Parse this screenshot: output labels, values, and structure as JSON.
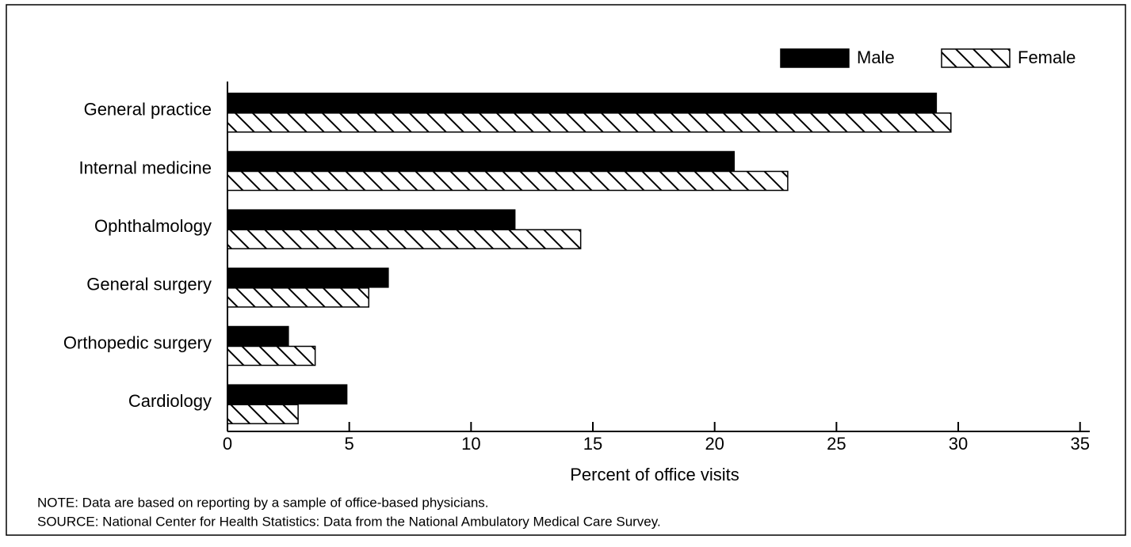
{
  "chart_data": {
    "type": "hbar",
    "categories": [
      "General practice",
      "Internal medicine",
      "Ophthalmology",
      "General surgery",
      "Orthopedic surgery",
      "Cardiology"
    ],
    "series": [
      {
        "name": "Male",
        "color": "#000000",
        "values": [
          29.1,
          20.8,
          11.8,
          6.6,
          2.5,
          4.9
        ]
      },
      {
        "name": "Female",
        "color": "#000000",
        "hatch": true,
        "values": [
          29.7,
          23.0,
          14.5,
          5.8,
          3.6,
          2.9
        ]
      }
    ],
    "x_label": "Percent of office visits",
    "xlim": [
      0,
      35.4
    ],
    "xticks": [
      0,
      5,
      10,
      15,
      20,
      25,
      30,
      35
    ],
    "legend": "top-right",
    "note": "NOTE:  Data are based on reporting by a sample of office-based physicians.",
    "source": "SOURCE:  National Center for Health Statistics: Data from the National Ambulatory Medical Care Survey."
  }
}
